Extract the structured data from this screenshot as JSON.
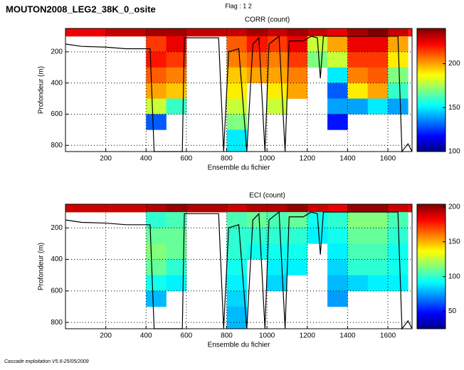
{
  "header": {
    "title": "MOUTON2008_LEG2_38K_0_osite",
    "subtitle": "Flag : 1  2"
  },
  "footer": "Cascade exploitation V5.6-25/05/2009",
  "chart_data": [
    {
      "type": "heatmap",
      "title": "CORR (count)",
      "xlabel": "Ensemble du fichier",
      "ylabel": "Profondeur (m)",
      "xlim": [
        0,
        1720
      ],
      "ylim": [
        50,
        840
      ],
      "xticks": [
        200,
        400,
        600,
        800,
        1000,
        1200,
        1400,
        1600
      ],
      "yticks": [
        200,
        400,
        600,
        800
      ],
      "grid": true,
      "colormap": "jet",
      "clim": [
        100,
        240
      ],
      "cticks": [
        100,
        150,
        200
      ],
      "xbins": [
        0,
        100,
        200,
        300,
        400,
        500,
        600,
        700,
        800,
        900,
        1000,
        1100,
        1200,
        1300,
        1400,
        1500,
        1600,
        1700,
        1720
      ],
      "ybins": [
        50,
        100,
        200,
        300,
        400,
        500,
        600,
        700,
        840
      ],
      "z": [
        [
          225,
          null,
          null,
          null,
          null,
          null,
          null,
          null
        ],
        [
          225,
          null,
          null,
          null,
          null,
          null,
          null,
          null
        ],
        [
          230,
          null,
          null,
          null,
          null,
          null,
          null,
          null
        ],
        [
          230,
          null,
          null,
          null,
          null,
          null,
          null,
          null
        ],
        [
          235,
          215,
          220,
          210,
          200,
          180,
          130,
          null
        ],
        [
          235,
          225,
          215,
          205,
          195,
          160,
          null,
          null
        ],
        [
          230,
          null,
          null,
          null,
          null,
          null,
          null,
          null
        ],
        [
          230,
          null,
          null,
          null,
          null,
          null,
          null,
          null
        ],
        [
          230,
          210,
          205,
          195,
          190,
          180,
          170,
          150
        ],
        [
          235,
          220,
          210,
          200,
          null,
          null,
          null,
          null
        ],
        [
          230,
          215,
          205,
          200,
          190,
          180,
          null,
          null
        ],
        [
          235,
          225,
          215,
          205,
          200,
          null,
          null,
          null
        ],
        [
          230,
          180,
          170,
          null,
          null,
          null,
          null,
          null
        ],
        [
          225,
          200,
          180,
          150,
          130,
          140,
          120,
          null
        ],
        [
          235,
          225,
          215,
          205,
          190,
          140,
          null,
          null
        ],
        [
          240,
          225,
          215,
          210,
          200,
          150,
          null,
          null
        ],
        [
          230,
          200,
          190,
          170,
          160,
          140,
          null,
          null
        ],
        [
          220,
          null,
          null,
          null,
          null,
          null,
          null,
          null
        ]
      ],
      "bottom": {
        "color": "#000000",
        "x": [
          0,
          80,
          200,
          300,
          420,
          440,
          580,
          590,
          760,
          785,
          810,
          860,
          900,
          930,
          960,
          990,
          1010,
          1060,
          1090,
          1110,
          1180,
          1220,
          1250,
          1265,
          1280,
          1400,
          1650,
          1670,
          1700,
          1720
        ],
        "y": [
          150,
          165,
          170,
          180,
          180,
          840,
          840,
          110,
          110,
          840,
          200,
          180,
          840,
          150,
          110,
          840,
          150,
          100,
          840,
          130,
          130,
          100,
          110,
          370,
          100,
          100,
          100,
          840,
          790,
          840
        ]
      }
    },
    {
      "type": "heatmap",
      "title": "ECI (count)",
      "xlabel": "Ensemble du fichier",
      "ylabel": "Profondeur (m)",
      "xlim": [
        0,
        1720
      ],
      "ylim": [
        50,
        840
      ],
      "xticks": [
        200,
        400,
        600,
        800,
        1000,
        1200,
        1400,
        1600
      ],
      "yticks": [
        200,
        400,
        600,
        800
      ],
      "grid": true,
      "colormap": "jet",
      "clim": [
        25,
        204
      ],
      "cticks": [
        50,
        100,
        150,
        200
      ],
      "xbins": [
        0,
        100,
        200,
        300,
        400,
        500,
        600,
        700,
        800,
        900,
        1000,
        1100,
        1200,
        1300,
        1400,
        1500,
        1600,
        1700,
        1720
      ],
      "ybins": [
        50,
        100,
        200,
        300,
        400,
        500,
        600,
        700,
        840
      ],
      "z": [
        [
          190,
          null,
          null,
          null,
          null,
          null,
          null,
          null
        ],
        [
          190,
          null,
          null,
          null,
          null,
          null,
          null,
          null
        ],
        [
          190,
          null,
          null,
          null,
          null,
          null,
          null,
          null
        ],
        [
          190,
          null,
          null,
          null,
          null,
          null,
          null,
          null
        ],
        [
          195,
          100,
          110,
          115,
          110,
          95,
          80,
          null
        ],
        [
          200,
          105,
          110,
          110,
          100,
          90,
          null,
          null
        ],
        [
          195,
          null,
          null,
          null,
          null,
          null,
          null,
          null
        ],
        [
          195,
          null,
          null,
          null,
          null,
          null,
          null,
          null
        ],
        [
          190,
          105,
          100,
          100,
          95,
          90,
          85,
          80
        ],
        [
          195,
          110,
          100,
          95,
          null,
          null,
          null,
          null
        ],
        [
          195,
          105,
          100,
          95,
          90,
          85,
          null,
          null
        ],
        [
          200,
          110,
          100,
          95,
          90,
          null,
          null,
          null
        ],
        [
          190,
          95,
          90,
          null,
          null,
          null,
          null,
          null
        ],
        [
          185,
          100,
          95,
          90,
          85,
          80,
          75,
          null
        ],
        [
          200,
          115,
          110,
          105,
          100,
          85,
          null,
          null
        ],
        [
          200,
          115,
          110,
          105,
          100,
          90,
          null,
          null
        ],
        [
          190,
          105,
          100,
          95,
          95,
          90,
          null,
          null
        ],
        [
          185,
          null,
          null,
          null,
          null,
          null,
          null,
          null
        ]
      ],
      "bottom": {
        "color": "#000000",
        "x": [
          0,
          80,
          200,
          300,
          420,
          440,
          580,
          590,
          760,
          785,
          810,
          860,
          900,
          930,
          960,
          990,
          1010,
          1060,
          1090,
          1110,
          1180,
          1220,
          1250,
          1265,
          1280,
          1400,
          1650,
          1670,
          1700,
          1720
        ],
        "y": [
          150,
          165,
          170,
          180,
          180,
          840,
          840,
          110,
          110,
          840,
          200,
          180,
          840,
          150,
          110,
          840,
          150,
          100,
          840,
          130,
          130,
          100,
          110,
          370,
          100,
          100,
          100,
          840,
          790,
          840
        ]
      }
    }
  ]
}
